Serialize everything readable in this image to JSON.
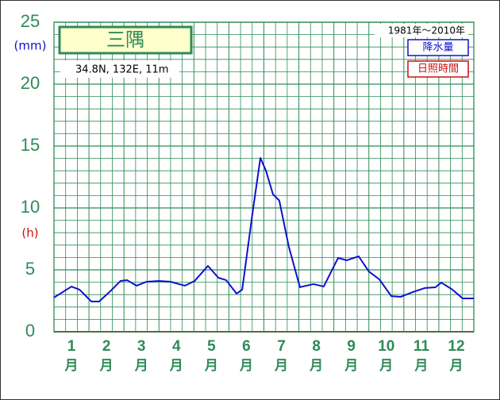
{
  "chart_data": {
    "type": "line",
    "title": "三隅",
    "subtitle": "34.8N,  132E,  11m",
    "period": "1981年〜2010年",
    "y_label": "(mm)",
    "y2_label": "(h)",
    "categories": [
      "1",
      "2",
      "3",
      "4",
      "5",
      "6",
      "7",
      "8",
      "9",
      "10",
      "11",
      "12"
    ],
    "x_unit": "月",
    "xlim": [
      0,
      12
    ],
    "xticks": [
      0,
      1,
      2,
      3,
      4,
      5,
      6,
      7,
      8,
      9,
      10,
      11,
      12
    ],
    "ylim": [
      0,
      25
    ],
    "yticks": [
      0,
      5,
      10,
      15,
      20,
      25
    ],
    "yminorticks": [
      1,
      2,
      3,
      4,
      6,
      7,
      8,
      9,
      11,
      12,
      13,
      14,
      16,
      17,
      18,
      19,
      21,
      22,
      23,
      24
    ],
    "grid": true,
    "legend": "upper right",
    "series": [
      {
        "name": "降水量",
        "color": "#1010cc",
        "x": [
          0,
          0.5,
          0.73,
          1.07,
          1.29,
          1.63,
          1.9,
          2.09,
          2.36,
          2.65,
          3.0,
          3.33,
          3.74,
          4.02,
          4.4,
          4.7,
          4.92,
          5.22,
          5.38,
          5.67,
          5.9,
          6.06,
          6.26,
          6.44,
          6.71,
          7.03,
          7.42,
          7.71,
          8.12,
          8.37,
          8.71,
          9.0,
          9.3,
          9.64,
          9.91,
          10.25,
          10.6,
          10.9,
          11.07,
          11.39,
          11.68,
          12.0
        ],
        "values": [
          2.76,
          3.65,
          3.4,
          2.44,
          2.44,
          3.33,
          4.1,
          4.17,
          3.72,
          4.04,
          4.1,
          4.04,
          3.72,
          4.1,
          5.32,
          4.36,
          4.17,
          3.08,
          3.4,
          9.49,
          14.04,
          13.0,
          11.1,
          10.6,
          6.9,
          3.6,
          3.85,
          3.65,
          5.96,
          5.77,
          6.09,
          4.87,
          4.23,
          2.88,
          2.82,
          3.2,
          3.53,
          3.59,
          3.97,
          3.4,
          2.69,
          2.69
        ]
      },
      {
        "name": "日照時間",
        "color": "#cc1010",
        "x": [],
        "values": []
      }
    ]
  }
}
